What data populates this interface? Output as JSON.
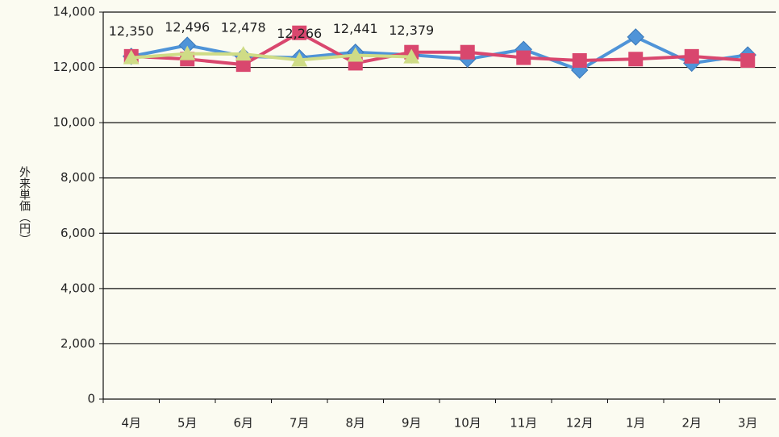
{
  "chart_data": {
    "type": "line",
    "y_label": "外来単価（円）",
    "categories": [
      "4月",
      "5月",
      "6月",
      "7月",
      "8月",
      "9月",
      "10月",
      "11月",
      "12月",
      "1月",
      "2月",
      "3月"
    ],
    "series": [
      {
        "color": "#4f94d8",
        "marker": "diamond",
        "values": [
          12400,
          12800,
          12400,
          12350,
          12550,
          12450,
          12300,
          12650,
          11900,
          13100,
          12150,
          12450
        ]
      },
      {
        "color": "#d9476e",
        "marker": "square",
        "values": [
          12400,
          12300,
          12100,
          13250,
          12150,
          12550,
          12550,
          12350,
          12250,
          12300,
          12400,
          12250
        ]
      },
      {
        "color": "#cfdc86",
        "marker": "triangle",
        "values": [
          12350,
          12496,
          12478,
          12266,
          12441,
          12379,
          null,
          null,
          null,
          null,
          null,
          null
        ],
        "value_labels": [
          "12,350",
          "12,496",
          "12,478",
          "12,266",
          "12,441",
          "12,379",
          null,
          null,
          null,
          null,
          null,
          null
        ]
      }
    ],
    "ylim": [
      0,
      14000
    ],
    "yticks": [
      0,
      {
        "value": 2000,
        "label": "2,000"
      },
      {
        "value": 4000,
        "label": "4,000"
      },
      {
        "value": 6000,
        "label": "6,000"
      },
      {
        "value": 8000,
        "label": "8,000"
      },
      {
        "value": 10000,
        "label": "10,000"
      },
      {
        "value": 12000,
        "label": "12,000"
      },
      {
        "value": 14000,
        "label": "14,000"
      }
    ],
    "grid": true
  }
}
